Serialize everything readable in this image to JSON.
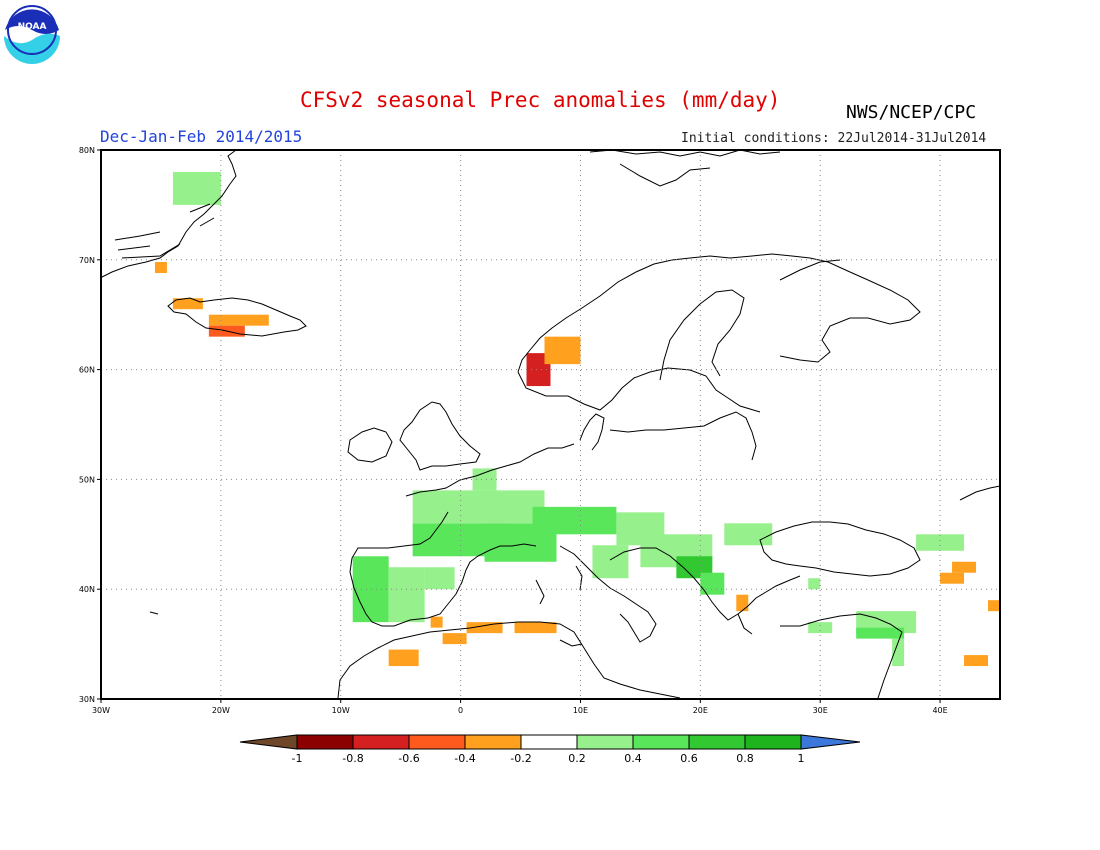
{
  "header": {
    "title": "CFSv2 seasonal Prec anomalies (mm/day)",
    "agency": "NWS/NCEP/CPC",
    "season": "Dec-Jan-Feb 2014/2015",
    "initial_conditions": "Initial conditions: 22Jul2014-31Jul2014",
    "logo_text": "NOAA"
  },
  "map": {
    "lon_range": [
      -30,
      45
    ],
    "lat_range": [
      30,
      80
    ],
    "x_ticks": [
      {
        "lon": -30,
        "label": "30W"
      },
      {
        "lon": -20,
        "label": "20W"
      },
      {
        "lon": -10,
        "label": "10W"
      },
      {
        "lon": 0,
        "label": "0"
      },
      {
        "lon": 10,
        "label": "10E"
      },
      {
        "lon": 20,
        "label": "20E"
      },
      {
        "lon": 30,
        "label": "30E"
      },
      {
        "lon": 40,
        "label": "40E"
      }
    ],
    "y_ticks": [
      {
        "lat": 30,
        "label": "30N"
      },
      {
        "lat": 40,
        "label": "40N"
      },
      {
        "lat": 50,
        "label": "50N"
      },
      {
        "lat": 60,
        "label": "60N"
      },
      {
        "lat": 70,
        "label": "70N"
      },
      {
        "lat": 80,
        "label": "80N"
      }
    ],
    "grid": "dotted"
  },
  "colorbar": {
    "labels": [
      "-1",
      "-0.8",
      "-0.6",
      "-0.4",
      "-0.2",
      "0.2",
      "0.4",
      "0.6",
      "0.8",
      "1"
    ],
    "colors": [
      "#8b0000",
      "#d42020",
      "#ff5a1e",
      "#ffa01e",
      "#ffffff",
      "#96f08c",
      "#5ae65a",
      "#32c832",
      "#1eb41e"
    ],
    "under_color": "#6e4628",
    "over_color": "#3c78dc"
  },
  "chart_data": {
    "type": "heatmap",
    "variable": "Prec anomalies (mm/day)",
    "cells": [
      {
        "lon": [
          -24,
          -20
        ],
        "lat": [
          75,
          78
        ],
        "class": 0.3
      },
      {
        "lon": [
          -25.5,
          -24.5
        ],
        "lat": [
          68.8,
          69.8
        ],
        "class": -0.3
      },
      {
        "lon": [
          -24,
          -21.5
        ],
        "lat": [
          65.5,
          66.5
        ],
        "class": -0.3
      },
      {
        "lon": [
          -21,
          -16
        ],
        "lat": [
          64,
          65
        ],
        "class": -0.3
      },
      {
        "lon": [
          -21,
          -18
        ],
        "lat": [
          63,
          64
        ],
        "class": -0.5
      },
      {
        "lon": [
          5.5,
          7.5
        ],
        "lat": [
          58.5,
          61.5
        ],
        "class": -0.7
      },
      {
        "lon": [
          7,
          10
        ],
        "lat": [
          60.5,
          63
        ],
        "class": -0.3
      },
      {
        "lon": [
          -9,
          -6
        ],
        "lat": [
          37,
          43
        ],
        "class": 0.5
      },
      {
        "lon": [
          -6,
          -3
        ],
        "lat": [
          37,
          42
        ],
        "class": 0.3
      },
      {
        "lon": [
          -3,
          -0.5
        ],
        "lat": [
          40,
          42
        ],
        "class": 0.3
      },
      {
        "lon": [
          -4,
          4
        ],
        "lat": [
          43,
          46
        ],
        "class": 0.4
      },
      {
        "lon": [
          2,
          8
        ],
        "lat": [
          42.5,
          46
        ],
        "class": 0.5
      },
      {
        "lon": [
          -4,
          7
        ],
        "lat": [
          46,
          49
        ],
        "class": 0.3
      },
      {
        "lon": [
          1,
          3
        ],
        "lat": [
          49,
          51
        ],
        "class": 0.3
      },
      {
        "lon": [
          6,
          13
        ],
        "lat": [
          45,
          47.5
        ],
        "class": 0.4
      },
      {
        "lon": [
          13,
          17
        ],
        "lat": [
          44,
          47
        ],
        "class": 0.3
      },
      {
        "lon": [
          15,
          21
        ],
        "lat": [
          42,
          45
        ],
        "class": 0.3
      },
      {
        "lon": [
          18,
          21
        ],
        "lat": [
          41,
          43
        ],
        "class": 0.7
      },
      {
        "lon": [
          20,
          22
        ],
        "lat": [
          39.5,
          41.5
        ],
        "class": 0.4
      },
      {
        "lon": [
          22,
          26
        ],
        "lat": [
          44,
          46
        ],
        "class": 0.3
      },
      {
        "lon": [
          11,
          14
        ],
        "lat": [
          41,
          44
        ],
        "class": 0.3
      },
      {
        "lon": [
          -6,
          -3.5
        ],
        "lat": [
          33,
          34.5
        ],
        "class": -0.3
      },
      {
        "lon": [
          -1.5,
          0.5
        ],
        "lat": [
          35,
          36
        ],
        "class": -0.3
      },
      {
        "lon": [
          0.5,
          3.5
        ],
        "lat": [
          36,
          37
        ],
        "class": -0.3
      },
      {
        "lon": [
          4.5,
          8
        ],
        "lat": [
          36,
          37
        ],
        "class": -0.3
      },
      {
        "lon": [
          -2.5,
          -1.5
        ],
        "lat": [
          36.5,
          37.5
        ],
        "class": -0.3
      },
      {
        "lon": [
          23,
          24
        ],
        "lat": [
          38,
          39.5
        ],
        "class": -0.3
      },
      {
        "lon": [
          29,
          31
        ],
        "lat": [
          36,
          37
        ],
        "class": 0.3
      },
      {
        "lon": [
          33,
          38
        ],
        "lat": [
          36,
          38
        ],
        "class": 0.3
      },
      {
        "lon": [
          33,
          37
        ],
        "lat": [
          35.5,
          36.5
        ],
        "class": 0.5
      },
      {
        "lon": [
          36,
          37
        ],
        "lat": [
          33,
          35.5
        ],
        "class": 0.3
      },
      {
        "lon": [
          38,
          42
        ],
        "lat": [
          43.5,
          45
        ],
        "class": 0.3
      },
      {
        "lon": [
          41,
          43
        ],
        "lat": [
          41.5,
          42.5
        ],
        "class": -0.3
      },
      {
        "lon": [
          40,
          42
        ],
        "lat": [
          40.5,
          41.5
        ],
        "class": -0.3
      },
      {
        "lon": [
          42,
          44
        ],
        "lat": [
          33,
          34
        ],
        "class": -0.3
      },
      {
        "lon": [
          44,
          45
        ],
        "lat": [
          38,
          39
        ],
        "class": -0.3
      },
      {
        "lon": [
          29,
          30
        ],
        "lat": [
          40,
          41
        ],
        "class": 0.3
      }
    ]
  }
}
